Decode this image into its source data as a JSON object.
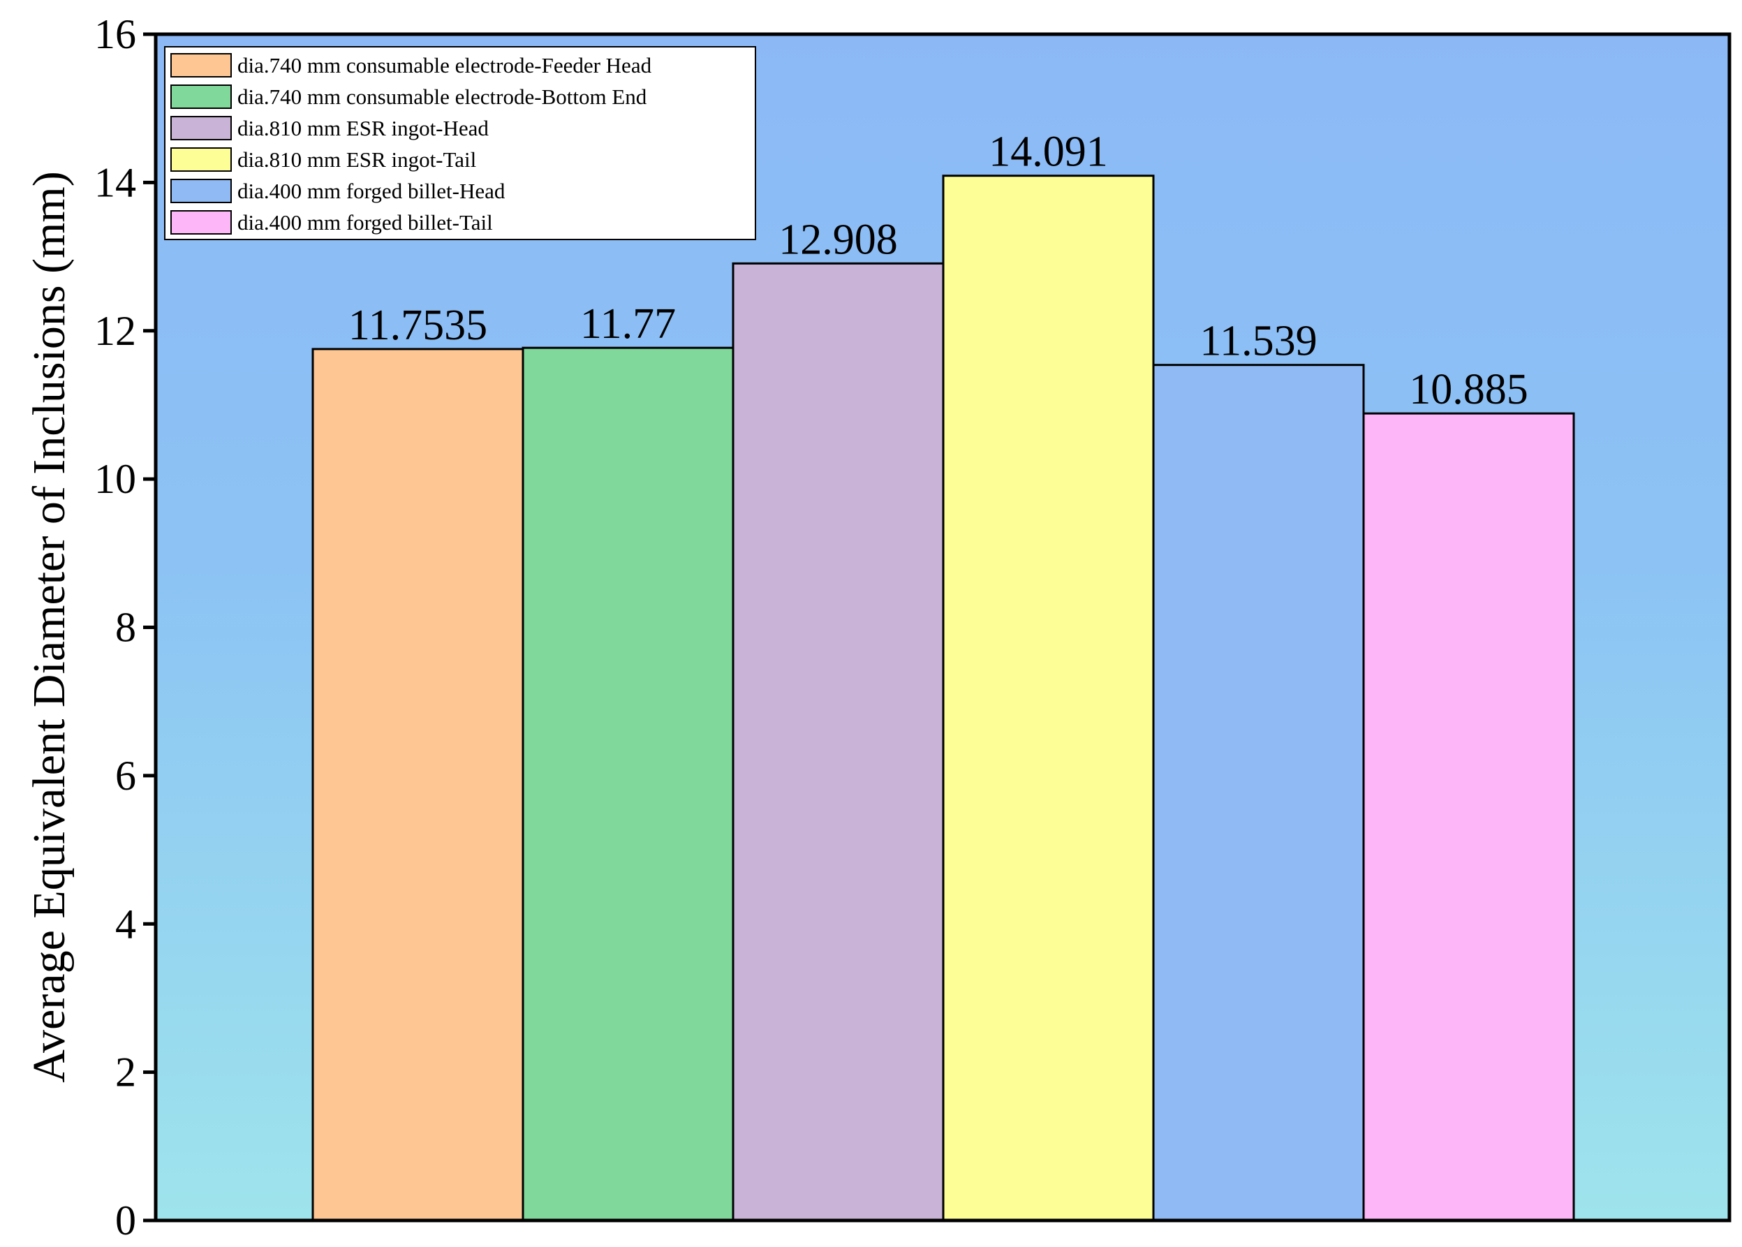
{
  "chart_data": {
    "type": "bar",
    "categories": [
      "dia.740 mm consumable electrode-Feeder Head",
      "dia.740 mm consumable electrode-Bottom End",
      "dia.810 mm ESR ingot-Head",
      "dia.810 mm ESR ingot-Tail",
      "dia.400 mm forged billet-Head",
      "dia.400 mm forged billet-Tail"
    ],
    "values": [
      11.7535,
      11.77,
      12.908,
      14.091,
      11.539,
      10.885
    ],
    "value_labels": [
      "11.7535",
      "11.77",
      "12.908",
      "14.091",
      "11.539",
      "10.885"
    ],
    "colors": [
      "#fdc693",
      "#80d99a",
      "#c9b3d7",
      "#fefe96",
      "#90baf4",
      "#fdb7f8"
    ],
    "title": "",
    "xlabel": "",
    "ylabel": "Average Equivalent Diameter of Inclusions (mm)",
    "ylim": [
      0,
      16
    ],
    "yticks": [
      0,
      2,
      4,
      6,
      8,
      10,
      12,
      14,
      16
    ],
    "ytick_labels": [
      "0",
      "2",
      "4",
      "6",
      "8",
      "10",
      "12",
      "14",
      "16"
    ],
    "grid": false,
    "legend": {
      "position": "top-left",
      "entries": [
        "dia.740 mm consumable electrode-Feeder Head",
        "dia.740 mm consumable electrode-Bottom End",
        "dia.810 mm ESR ingot-Head",
        "dia.810 mm ESR ingot-Tail",
        "dia.400 mm forged billet-Head",
        "dia.400 mm forged billet-Tail"
      ]
    },
    "background_gradient": [
      "#8cb9f6",
      "#9ee4ec"
    ]
  }
}
